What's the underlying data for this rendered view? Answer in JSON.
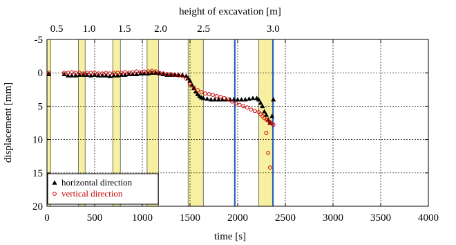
{
  "chart_data": {
    "type": "scatter",
    "title": "",
    "xlabel": "time [s]",
    "ylabel": "displacement [mm]",
    "top_axis_label": "height of excavation [m]",
    "xlim": [
      0,
      4000
    ],
    "ylim": [
      20,
      -5
    ],
    "y_reversed": true,
    "grid": true,
    "x_ticks": [
      0,
      500,
      1000,
      1500,
      2000,
      2500,
      3000,
      3500,
      4000
    ],
    "y_ticks": [
      -5,
      0,
      5,
      10,
      15,
      20
    ],
    "top_ticks": [
      {
        "time": 20,
        "label": "0.5"
      },
      {
        "time": 360,
        "label": "1.0"
      },
      {
        "time": 730,
        "label": "1.5"
      },
      {
        "time": 1110,
        "label": "2.0"
      },
      {
        "time": 1560,
        "label": "2.5"
      },
      {
        "time": 2290,
        "label": "3.0"
      }
    ],
    "excavation_bands": [
      [
        0,
        40
      ],
      [
        330,
        400
      ],
      [
        690,
        770
      ],
      [
        1050,
        1170
      ],
      [
        1480,
        1640
      ],
      [
        2220,
        2370
      ]
    ],
    "vertical_lines": [
      1970,
      2370
    ],
    "legend": {
      "placement": "bottom-left",
      "entries": [
        {
          "label": "horizontal direction",
          "marker": "triangle",
          "color": "#000000"
        },
        {
          "label": "vertical direction",
          "marker": "circle",
          "color": "#cc0000"
        }
      ]
    },
    "series": [
      {
        "name": "horizontal direction",
        "marker": "triangle",
        "color": "#000000",
        "x": [
          20,
          180,
          220,
          260,
          300,
          340,
          380,
          420,
          460,
          500,
          540,
          580,
          620,
          660,
          700,
          740,
          780,
          820,
          860,
          900,
          940,
          980,
          1020,
          1060,
          1100,
          1140,
          1180,
          1220,
          1260,
          1300,
          1340,
          1380,
          1420,
          1460,
          1480,
          1500,
          1520,
          1540,
          1560,
          1580,
          1600,
          1620,
          1640,
          1680,
          1720,
          1760,
          1800,
          1840,
          1880,
          1920,
          1960,
          2000,
          2040,
          2080,
          2120,
          2160,
          2200,
          2220,
          2240,
          2260,
          2280,
          2300,
          2320,
          2340,
          2360,
          2375
        ],
        "y": [
          0.2,
          0.2,
          0.4,
          0.4,
          0.4,
          0.3,
          0.3,
          0.3,
          0.4,
          0.3,
          0.4,
          0.4,
          0.4,
          0.5,
          0.4,
          0.4,
          0.3,
          0.3,
          0.2,
          0.2,
          0.2,
          0.1,
          0.1,
          0.1,
          0.0,
          0.0,
          0.1,
          0.2,
          0.3,
          0.3,
          0.3,
          0.3,
          0.3,
          0.5,
          0.8,
          1.2,
          1.8,
          2.3,
          2.8,
          3.2,
          3.5,
          3.7,
          3.8,
          3.9,
          4.0,
          4.0,
          4.0,
          4.0,
          4.0,
          4.0,
          4.0,
          4.0,
          4.0,
          4.0,
          3.9,
          3.8,
          3.8,
          4.0,
          4.5,
          5.0,
          5.8,
          6.3,
          7.0,
          7.5,
          6.5,
          4.0
        ]
      },
      {
        "name": "vertical direction",
        "marker": "circle",
        "color": "#cc0000",
        "x": [
          20,
          180,
          220,
          260,
          300,
          340,
          380,
          420,
          460,
          500,
          540,
          580,
          620,
          660,
          700,
          740,
          780,
          820,
          860,
          900,
          940,
          980,
          1020,
          1060,
          1100,
          1140,
          1180,
          1220,
          1260,
          1300,
          1340,
          1380,
          1420,
          1460,
          1500,
          1540,
          1580,
          1620,
          1660,
          1700,
          1740,
          1780,
          1820,
          1860,
          1900,
          1940,
          1980,
          2020,
          2060,
          2100,
          2140,
          2180,
          2220,
          2240,
          2260,
          2280,
          2300,
          2320,
          2340,
          2360,
          2375,
          2300,
          2320,
          2340
        ],
        "y": [
          0.0,
          0.0,
          0.0,
          -0.1,
          0.0,
          0.0,
          0.1,
          0.0,
          0.0,
          0.0,
          0.1,
          0.1,
          0.0,
          0.1,
          0.0,
          0.0,
          0.0,
          -0.1,
          0.0,
          -0.1,
          -0.2,
          -0.1,
          -0.2,
          -0.2,
          -0.3,
          -0.2,
          0.0,
          0.1,
          0.2,
          0.2,
          0.3,
          0.4,
          0.5,
          0.9,
          1.7,
          2.2,
          2.6,
          2.9,
          3.1,
          3.2,
          3.3,
          3.5,
          3.6,
          3.8,
          4.0,
          4.3,
          4.6,
          4.8,
          5.0,
          5.2,
          5.5,
          5.7,
          5.9,
          6.2,
          6.5,
          6.8,
          7.0,
          7.2,
          7.4,
          7.6,
          7.8,
          9.0,
          12.0,
          14.2
        ]
      }
    ]
  }
}
